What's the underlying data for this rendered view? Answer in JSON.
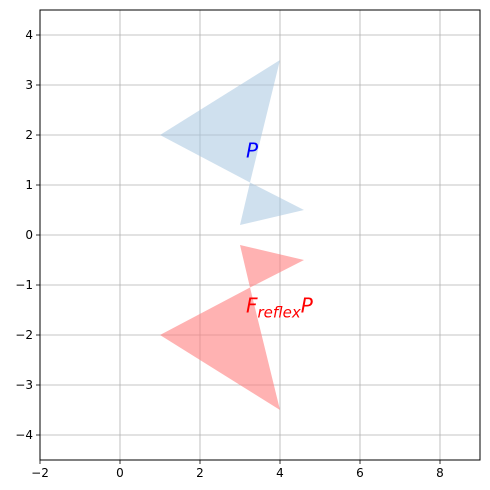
{
  "chart_data": {
    "type": "area",
    "title": "",
    "xlabel": "",
    "ylabel": "",
    "xlim": [
      -2,
      9
    ],
    "ylim": [
      -4.5,
      4.5
    ],
    "xticks": [
      -2,
      0,
      2,
      4,
      6,
      8
    ],
    "yticks": [
      -4,
      -3,
      -2,
      -1,
      0,
      1,
      2,
      3,
      4
    ],
    "grid": true,
    "shapes": [
      {
        "label": "P",
        "color": "#a7c6e0",
        "opacity": 0.55,
        "label_color": "#0000ff",
        "label_anchor": [
          3.15,
          1.55
        ],
        "points": [
          [
            1,
            2
          ],
          [
            4,
            3.5
          ],
          [
            3.25,
            1.05
          ],
          [
            4.6,
            0.5
          ],
          [
            3,
            0.2
          ],
          [
            3.25,
            1.05
          ]
        ]
      },
      {
        "label_parts": [
          {
            "text": "F",
            "style": "normal"
          },
          {
            "text": "reflex",
            "style": "sub"
          },
          {
            "text": "P",
            "style": "normal"
          }
        ],
        "color": "#ff7f7f",
        "opacity": 0.6,
        "label_color": "#ff0000",
        "label_anchor": [
          3.15,
          -1.55
        ],
        "points": [
          [
            1,
            -2
          ],
          [
            4,
            -3.5
          ],
          [
            3.25,
            -1.05
          ],
          [
            4.6,
            -0.5
          ],
          [
            3,
            -0.2
          ],
          [
            3.25,
            -1.05
          ]
        ]
      }
    ]
  }
}
